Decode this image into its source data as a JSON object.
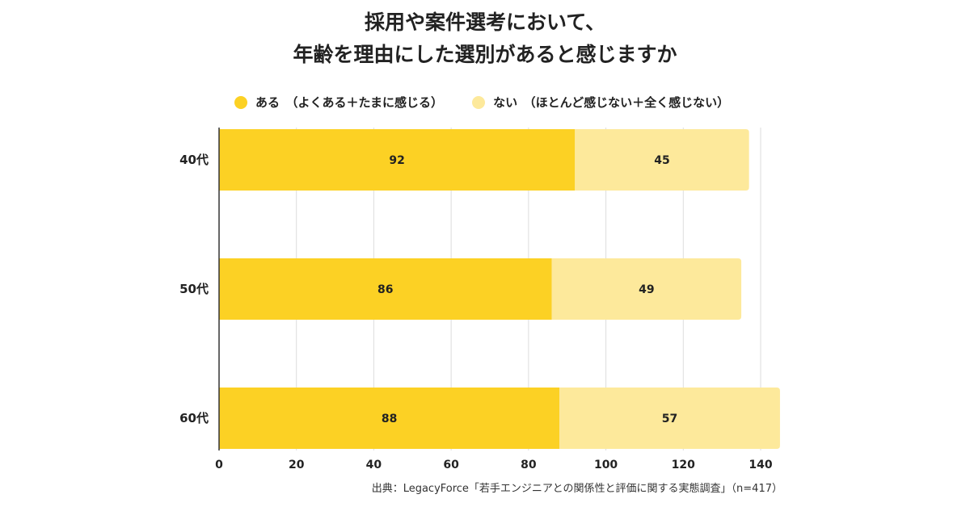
{
  "title_lines": [
    "採用や案件選考において、",
    "年齢を理由にした選別があると感じますか"
  ],
  "source": "出典：LegacyForce「若手エンジニアとの関係性と評価に関する実態調査」（n=417）",
  "chart_data": {
    "type": "bar",
    "orientation": "horizontal",
    "stacked": true,
    "title": "採用や案件選考において、年齢を理由にした選別があると感じますか",
    "categories": [
      "40代",
      "50代",
      "60代"
    ],
    "series": [
      {
        "name": "ある　（よくある＋たまに感じる）",
        "color": "#FCD124",
        "values": [
          92,
          86,
          88
        ]
      },
      {
        "name": "ない　（ほとんど感じない＋全く感じない）",
        "color": "#FDE99B",
        "values": [
          45,
          49,
          57
        ]
      }
    ],
    "xlim": [
      0,
      140
    ],
    "xticks": [
      0,
      20,
      40,
      60,
      80,
      100,
      120,
      140
    ],
    "grid": true,
    "legend": "top"
  }
}
